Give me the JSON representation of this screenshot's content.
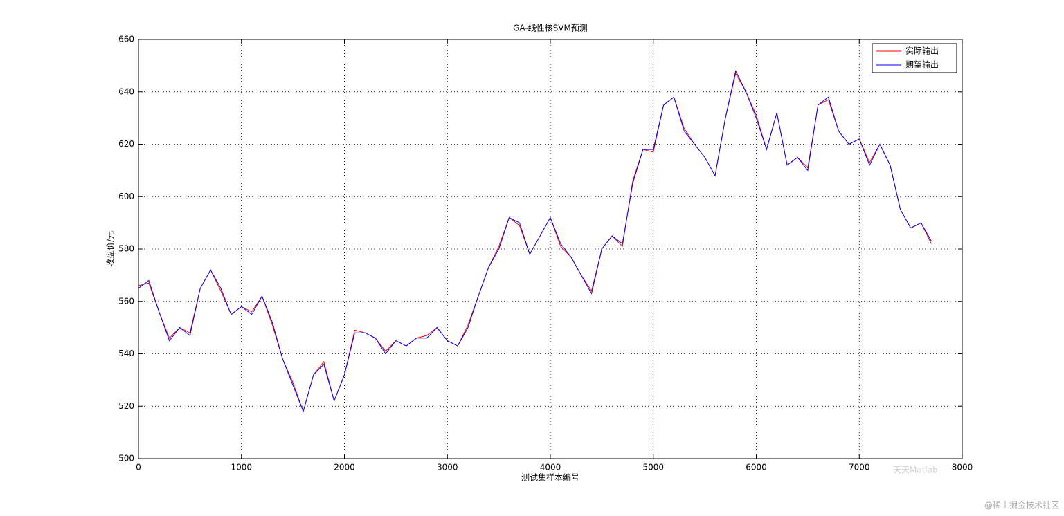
{
  "chart_data": {
    "type": "line",
    "title": "GA-线性核SVM预测",
    "x_label": "测试集样本编号",
    "y_label": "收盘价/元",
    "x": [
      0,
      100,
      200,
      300,
      400,
      500,
      600,
      700,
      800,
      900,
      1000,
      1100,
      1200,
      1300,
      1400,
      1500,
      1600,
      1700,
      1800,
      1900,
      2000,
      2100,
      2200,
      2300,
      2400,
      2500,
      2600,
      2700,
      2800,
      2900,
      3000,
      3100,
      3200,
      3300,
      3400,
      3500,
      3600,
      3700,
      3800,
      3900,
      4000,
      4100,
      4200,
      4300,
      4400,
      4500,
      4600,
      4700,
      4800,
      4900,
      5000,
      5100,
      5200,
      5300,
      5400,
      5500,
      5600,
      5700,
      5800,
      5900,
      6000,
      6100,
      6200,
      6300,
      6400,
      6500,
      6600,
      6700,
      6800,
      6900,
      7000,
      7100,
      7200,
      7300,
      7400,
      7500,
      7600,
      7700
    ],
    "series": [
      {
        "name": "实际输出",
        "color": "#ff0000",
        "values": [
          566,
          567,
          556,
          546,
          550,
          548,
          565,
          572,
          564,
          555,
          558,
          556,
          562,
          551,
          538,
          529,
          518,
          532,
          537,
          522,
          532,
          549,
          548,
          546,
          541,
          545,
          543,
          546,
          547,
          550,
          545,
          543,
          551,
          562,
          573,
          581,
          592,
          589,
          578,
          585,
          592,
          581,
          577,
          570,
          564,
          580,
          585,
          581,
          606,
          618,
          617,
          635,
          638,
          626,
          620,
          615,
          608,
          630,
          647,
          640,
          631,
          618,
          632,
          612,
          615,
          611,
          635,
          637,
          625,
          620,
          622,
          613,
          620,
          612,
          595,
          588,
          590,
          582
        ]
      },
      {
        "name": "期望输出",
        "color": "#0000ff",
        "values": [
          565,
          568,
          556,
          545,
          550,
          547,
          565,
          572,
          565,
          555,
          558,
          555,
          562,
          552,
          538,
          528,
          518,
          532,
          536,
          522,
          532,
          548,
          548,
          546,
          540,
          545,
          543,
          546,
          546,
          550,
          545,
          543,
          550,
          562,
          573,
          580,
          592,
          590,
          578,
          585,
          592,
          582,
          577,
          570,
          563,
          580,
          585,
          582,
          605,
          618,
          618,
          635,
          638,
          625,
          620,
          615,
          608,
          630,
          648,
          640,
          630,
          618,
          632,
          612,
          615,
          610,
          635,
          638,
          625,
          620,
          622,
          612,
          620,
          612,
          595,
          588,
          590,
          583
        ]
      }
    ],
    "xlim": [
      0,
      8000
    ],
    "xticks": [
      0,
      1000,
      2000,
      3000,
      4000,
      5000,
      6000,
      7000,
      8000
    ],
    "ylim": [
      500,
      660
    ],
    "yticks": [
      500,
      520,
      540,
      560,
      580,
      600,
      620,
      640,
      660
    ],
    "grid": true,
    "legend": "upper right",
    "watermarks": [
      "天天Matlab",
      "@稀土掘金技术社区"
    ]
  }
}
